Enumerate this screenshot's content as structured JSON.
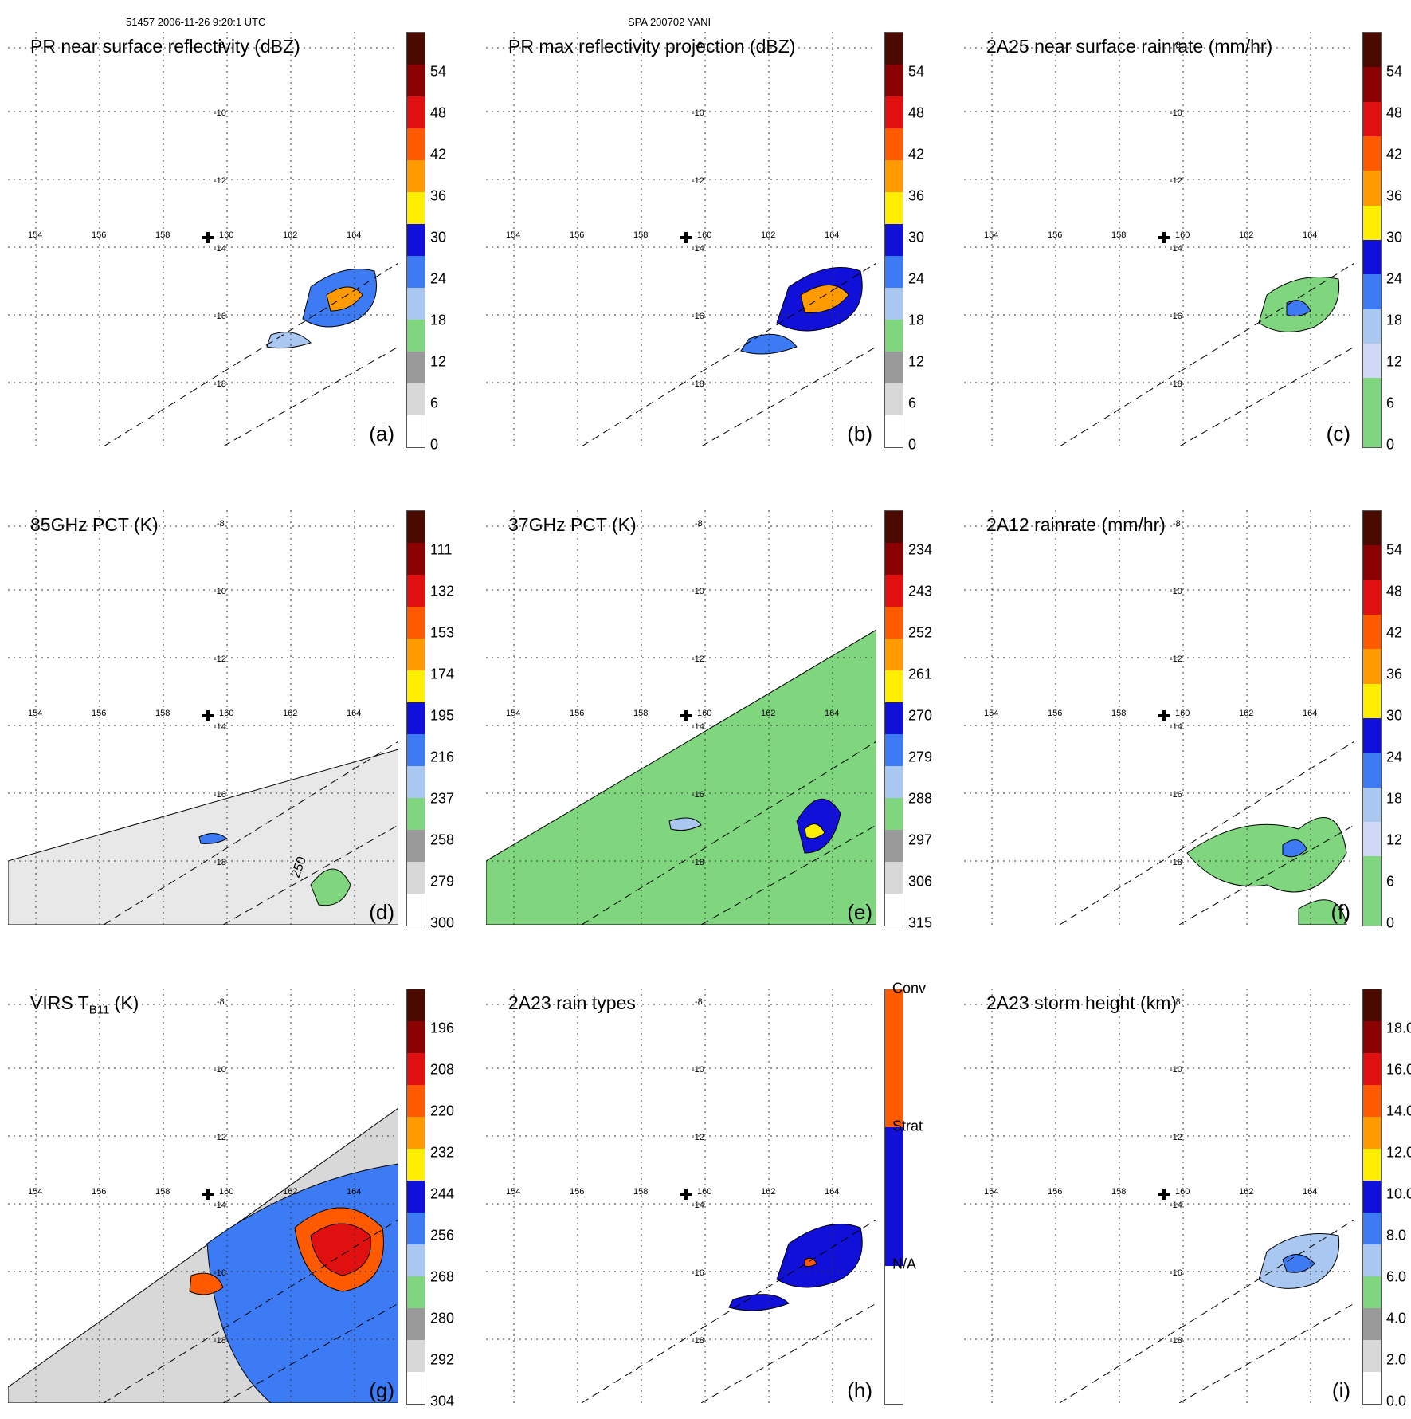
{
  "header": {
    "left": "51457 2006-11-26 9:20:1 UTC",
    "center": "SPA 200702 YANI"
  },
  "map": {
    "lon_labels": [
      "154",
      "156",
      "158",
      "160",
      "162",
      "164"
    ],
    "lat_labels": [
      "-8",
      "-10",
      "-12",
      "-14",
      "-16",
      "-18"
    ],
    "storm_center_marker": "plus-icon"
  },
  "panels": [
    {
      "id": "a",
      "title": "PR near surface reflectivity (dBZ)",
      "label": "(a)",
      "colorbar": [
        "0",
        "6",
        "12",
        "18",
        "24",
        "30",
        "36",
        "42",
        "48",
        "54"
      ],
      "palette": [
        "#ffffff",
        "#d8d8d8",
        "#9a9a9a",
        "#7fd67f",
        "#a9c7f0",
        "#3d7bf5",
        "#1010d8",
        "#ffee00",
        "#ff9a00",
        "#ff5a00",
        "#e01010",
        "#8b0000",
        "#4a0a00"
      ]
    },
    {
      "id": "b",
      "title": "PR max reflectivity projection (dBZ)",
      "label": "(b)",
      "colorbar": [
        "0",
        "6",
        "12",
        "18",
        "24",
        "30",
        "36",
        "42",
        "48",
        "54"
      ],
      "palette": [
        "#ffffff",
        "#d8d8d8",
        "#9a9a9a",
        "#7fd67f",
        "#a9c7f0",
        "#3d7bf5",
        "#1010d8",
        "#ffee00",
        "#ff9a00",
        "#ff5a00",
        "#e01010",
        "#8b0000",
        "#4a0a00"
      ]
    },
    {
      "id": "c",
      "title": "2A25 near surface rainrate (mm/hr)",
      "label": "(c)",
      "colorbar": [
        "0",
        "6",
        "12",
        "18",
        "24",
        "30",
        "36",
        "42",
        "48",
        "54"
      ],
      "palette": [
        "#7fd67f",
        "#7fd67f",
        "#d0d8f5",
        "#a9c7f0",
        "#3d7bf5",
        "#1010d8",
        "#ffee00",
        "#ff9a00",
        "#ff5a00",
        "#e01010",
        "#8b0000",
        "#4a0a00"
      ]
    },
    {
      "id": "d",
      "title": "85GHz PCT (K)",
      "label": "(d)",
      "colorbar": [
        "300",
        "279",
        "258",
        "237",
        "216",
        "195",
        "174",
        "153",
        "132",
        "111"
      ],
      "palette": [
        "#ffffff",
        "#d8d8d8",
        "#9a9a9a",
        "#7fd67f",
        "#a9c7f0",
        "#3d7bf5",
        "#1010d8",
        "#ffee00",
        "#ff9a00",
        "#ff5a00",
        "#e01010",
        "#8b0000",
        "#4a0a00"
      ],
      "contour_label": "250"
    },
    {
      "id": "e",
      "title": "37GHz PCT (K)",
      "label": "(e)",
      "colorbar": [
        "315",
        "306",
        "297",
        "288",
        "279",
        "270",
        "261",
        "252",
        "243",
        "234"
      ],
      "palette": [
        "#ffffff",
        "#d8d8d8",
        "#9a9a9a",
        "#7fd67f",
        "#a9c7f0",
        "#3d7bf5",
        "#1010d8",
        "#ffee00",
        "#ff9a00",
        "#ff5a00",
        "#e01010",
        "#8b0000",
        "#4a0a00"
      ]
    },
    {
      "id": "f",
      "title": "2A12 rainrate (mm/hr)",
      "label": "(f)",
      "colorbar": [
        "0",
        "6",
        "12",
        "18",
        "24",
        "30",
        "36",
        "42",
        "48",
        "54"
      ],
      "palette": [
        "#7fd67f",
        "#7fd67f",
        "#d0d8f5",
        "#a9c7f0",
        "#3d7bf5",
        "#1010d8",
        "#ffee00",
        "#ff9a00",
        "#ff5a00",
        "#e01010",
        "#8b0000",
        "#4a0a00"
      ]
    },
    {
      "id": "g",
      "title": "VIRS T",
      "title_sub": "B11",
      "title_suffix": " (K)",
      "label": "(g)",
      "colorbar": [
        "304",
        "292",
        "280",
        "268",
        "256",
        "244",
        "232",
        "220",
        "208",
        "196"
      ],
      "palette": [
        "#ffffff",
        "#d8d8d8",
        "#9a9a9a",
        "#7fd67f",
        "#a9c7f0",
        "#3d7bf5",
        "#1010d8",
        "#ffee00",
        "#ff9a00",
        "#ff5a00",
        "#e01010",
        "#8b0000",
        "#4a0a00"
      ]
    },
    {
      "id": "h",
      "title": "2A23 rain types",
      "label": "(h)",
      "colorbar_categories": [
        "N/A",
        "Strat",
        "Conv"
      ],
      "category_colors": [
        "#ffffff",
        "#1010d8",
        "#ff5a00"
      ]
    },
    {
      "id": "i",
      "title": "2A23 storm height (km)",
      "label": "(i)",
      "colorbar": [
        "0.0",
        "2.0",
        "4.0",
        "6.0",
        "8.0",
        "10.0",
        "12.0",
        "14.0",
        "16.0",
        "18.0"
      ],
      "palette": [
        "#ffffff",
        "#d8d8d8",
        "#9a9a9a",
        "#7fd67f",
        "#a9c7f0",
        "#3d7bf5",
        "#1010d8",
        "#ffee00",
        "#ff9a00",
        "#ff5a00",
        "#e01010",
        "#8b0000",
        "#4a0a00"
      ]
    }
  ]
}
